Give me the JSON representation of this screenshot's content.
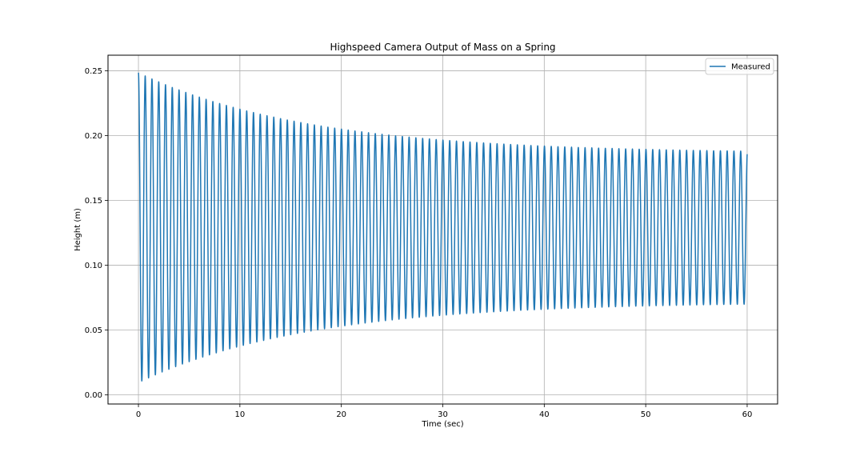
{
  "chart_data": {
    "type": "line",
    "title": "Highspeed Camera Output of Mass on a Spring",
    "xlabel": "Time (sec)",
    "ylabel": "Height (m)",
    "xlim": [
      -3,
      63
    ],
    "ylim": [
      -0.007,
      0.262
    ],
    "xticks": [
      0,
      10,
      20,
      30,
      40,
      50,
      60
    ],
    "xtick_labels": [
      "0",
      "10",
      "20",
      "30",
      "40",
      "50",
      "60"
    ],
    "yticks": [
      0.0,
      0.05,
      0.1,
      0.15,
      0.2,
      0.25
    ],
    "ytick_labels": [
      "0.00",
      "0.05",
      "0.10",
      "0.15",
      "0.20",
      "0.25"
    ],
    "grid": true,
    "legend_position": "top-right",
    "series": [
      {
        "name": "Measured",
        "color": "#1f77b4",
        "x_range": [
          0,
          60
        ],
        "period_sec": 0.667,
        "oscillation_cycles": 90,
        "start_value": 0.005,
        "first_peak_value": 0.248,
        "first_trough_value": 0.009,
        "final_peak_value": 0.188,
        "final_trough_value": 0.07,
        "end_value": 0.188,
        "envelope_decay_per_sec": 0.06,
        "equilibrium_center": 0.129
      }
    ]
  }
}
